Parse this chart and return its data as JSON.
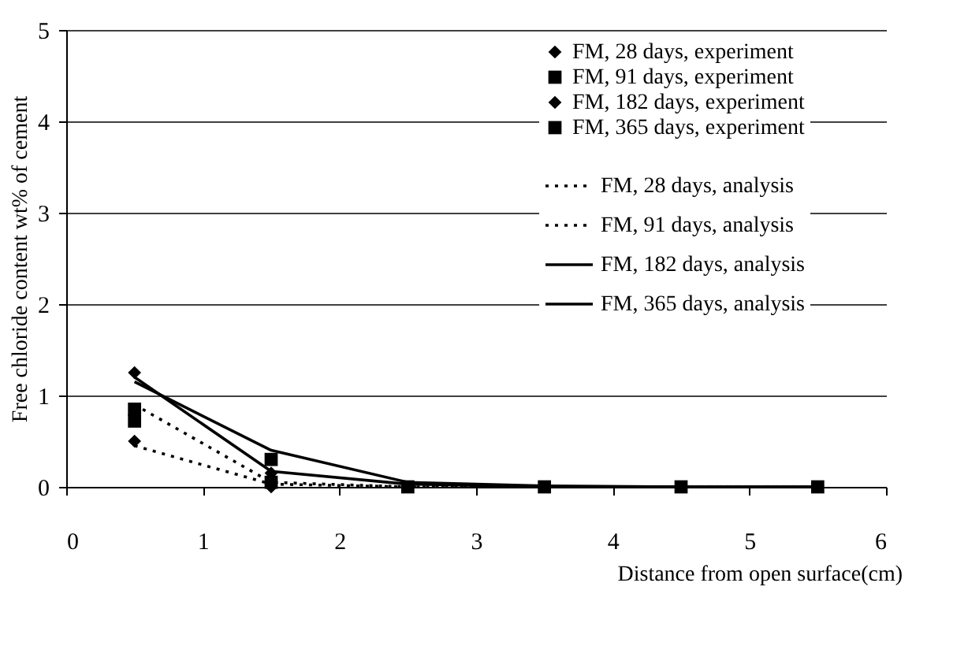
{
  "chart_data": {
    "type": "scatter",
    "xlabel": "Distance from open surface(cm)",
    "ylabel": "Free chloride content wt% of cement",
    "x": [
      0.5,
      1.5,
      2.5,
      3.5,
      4.5,
      5.5
    ],
    "xlim": [
      0,
      6
    ],
    "xticks": [
      0,
      1,
      2,
      3,
      4,
      5,
      6
    ],
    "ylim": [
      0,
      5
    ],
    "yticks": [
      0,
      1,
      2,
      3,
      4,
      5
    ],
    "grid": "y",
    "legend": "top right",
    "series": [
      {
        "name": "FM, 28 days, experiment",
        "type": "scatter",
        "marker": "diamond",
        "color": "#000000",
        "values": [
          0.5,
          0.0,
          null,
          null,
          null,
          null
        ]
      },
      {
        "name": "FM, 91 days, experiment",
        "type": "scatter",
        "marker": "square",
        "color": "#000000",
        "values": [
          0.85,
          0.05,
          null,
          null,
          null,
          null
        ]
      },
      {
        "name": "FM, 182 days, experiment",
        "type": "scatter",
        "marker": "diamond",
        "color": "#000000",
        "values": [
          1.25,
          0.15,
          null,
          null,
          null,
          null
        ]
      },
      {
        "name": "FM, 365 days, experiment",
        "type": "scatter",
        "marker": "square",
        "color": "#000000",
        "values": [
          0.72,
          0.3,
          0,
          0,
          0,
          0
        ]
      },
      {
        "name": "FM, 28 days, analysis",
        "type": "line",
        "line_style": "dotted",
        "color": "#000000",
        "values": [
          0.45,
          0.03,
          0,
          0,
          0,
          0
        ]
      },
      {
        "name": "FM, 91 days, analysis",
        "type": "line",
        "line_style": "dotted",
        "color": "#000000",
        "values": [
          0.9,
          0.05,
          0,
          0,
          0,
          0
        ]
      },
      {
        "name": "FM, 182 days, analysis",
        "type": "line",
        "line_style": "solid",
        "color": "#000000",
        "values": [
          1.2,
          0.17,
          0.03,
          0,
          0,
          0
        ]
      },
      {
        "name": "FM, 365 days, analysis",
        "type": "line",
        "line_style": "solid",
        "color": "#000000",
        "values": [
          1.15,
          0.4,
          0.05,
          0.01,
          0,
          0
        ]
      }
    ]
  }
}
